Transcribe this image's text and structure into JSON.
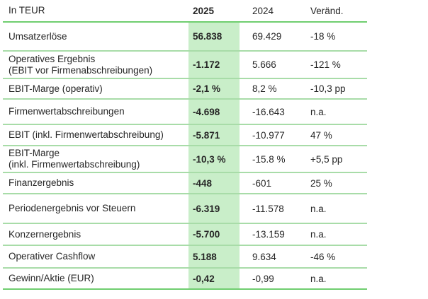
{
  "table": {
    "unit_label": "In TEUR",
    "columns": [
      "2025",
      "2024",
      "Veränd."
    ],
    "rows": [
      {
        "label": "Umsatzerlöse",
        "label2": "",
        "v2025": "56.838",
        "v2024": "69.429",
        "change": "-18 %"
      },
      {
        "label": "Operatives Ergebnis",
        "label2": "(EBIT vor Firmenabschreibungen)",
        "v2025": "-1.172",
        "v2024": "5.666",
        "change": "-121 %"
      },
      {
        "label": "EBIT-Marge (operativ)",
        "label2": "",
        "v2025": "-2,1 %",
        "v2024": "8,2 %",
        "change": "-10,3 pp"
      },
      {
        "label": "Firmenwertabschreibungen",
        "label2": "",
        "v2025": "-4.698",
        "v2024": "-16.643",
        "change": "n.a."
      },
      {
        "label": "EBIT (inkl. Firmenwertabschreibung)",
        "label2": "",
        "v2025": "-5.871",
        "v2024": "-10.977",
        "change": "47 %"
      },
      {
        "label": "EBIT-Marge",
        "label2": "(inkl. Firmenwertabschreibung)",
        "v2025": "-10,3 %",
        "v2024": "-15.8 %",
        "change": "+5,5 pp"
      },
      {
        "label": "Finanzergebnis",
        "label2": "",
        "v2025": "-448",
        "v2024": "-601",
        "change": "25 %"
      },
      {
        "label": "Periodenergebnis vor Steuern",
        "label2": "",
        "v2025": "-6.319",
        "v2024": "-11.578",
        "change": "n.a."
      },
      {
        "label": "Konzernergebnis",
        "label2": "",
        "v2025": "-5.700",
        "v2024": "-13.159",
        "change": "n.a."
      },
      {
        "label": "Operativer Cashflow",
        "label2": "",
        "v2025": "5.188",
        "v2024": "9.634",
        "change": "-46 %"
      },
      {
        "label": "Gewinn/Aktie (EUR)",
        "label2": "",
        "v2025": "-0,42",
        "v2024": "-0,99",
        "change": "n.a."
      }
    ],
    "colors": {
      "highlight_column": "#c9eec9",
      "line_strong": "#6fce6f",
      "line_light": "#a8dca8",
      "text": "#262626"
    }
  }
}
